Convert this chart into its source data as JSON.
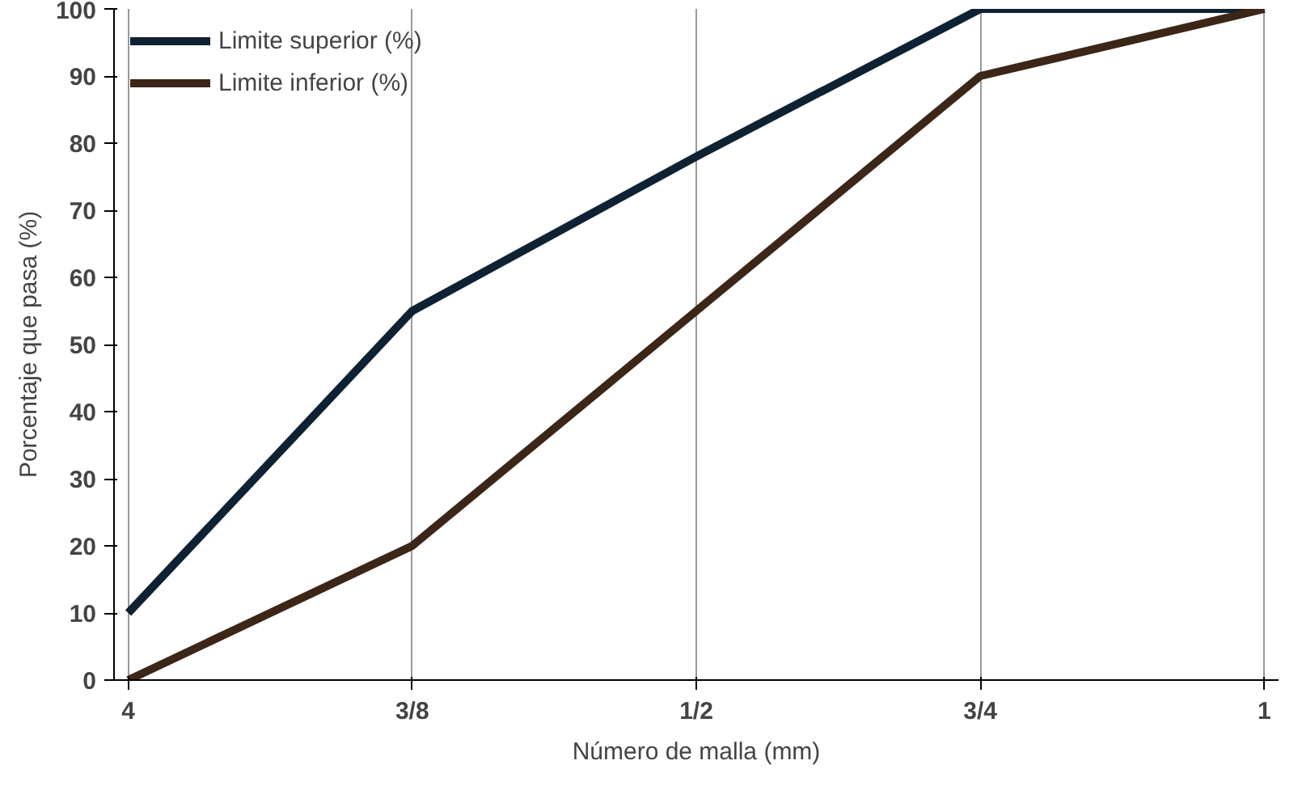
{
  "chart_data": {
    "type": "line",
    "xlabel": "Número de malla (mm)",
    "ylabel": "Porcentaje que pasa (%)",
    "categories": [
      "4",
      "3/8",
      "1/2",
      "3/4",
      "1"
    ],
    "series": [
      {
        "name": "Limite superior (%)",
        "color": "#0e2233",
        "values": [
          10,
          55,
          78,
          100,
          100
        ]
      },
      {
        "name": "Limite inferior (%)",
        "color": "#3b2618",
        "values": [
          0,
          20,
          55,
          90,
          100
        ]
      }
    ],
    "ylim": [
      0,
      100
    ],
    "yticks": [
      0,
      10,
      20,
      30,
      40,
      50,
      60,
      70,
      80,
      90,
      100
    ],
    "grid": "x",
    "legend": "top left",
    "marker": "none",
    "line_style": "solid"
  }
}
